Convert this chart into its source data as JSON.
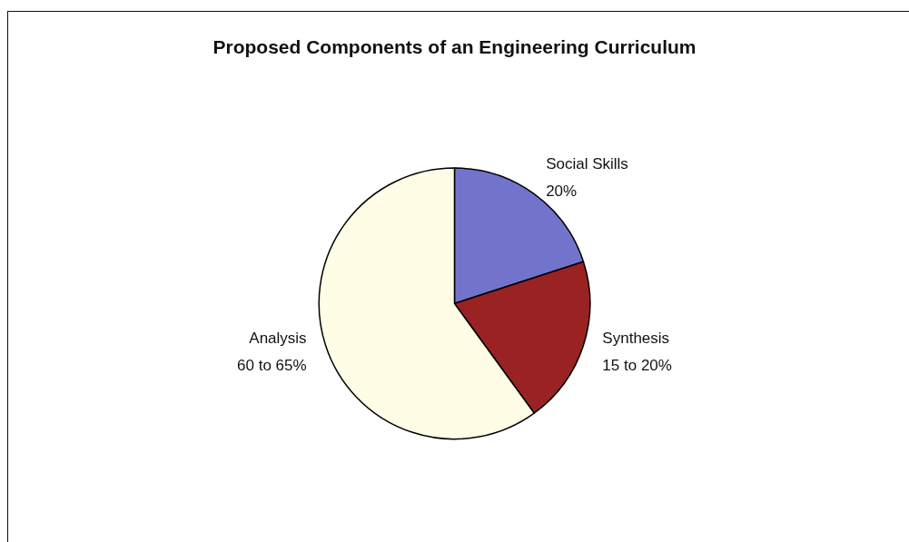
{
  "chart_data": {
    "type": "pie",
    "title": "Proposed Components of an Engineering Curriculum",
    "categories": [
      "Social Skills",
      "Synthesis",
      "Analysis"
    ],
    "values": [
      20,
      20,
      60
    ],
    "value_labels": [
      "20%",
      "15 to 20%",
      "60 to 65%"
    ],
    "colors": [
      "#7274cc",
      "#9b2222",
      "#fffde6"
    ]
  }
}
